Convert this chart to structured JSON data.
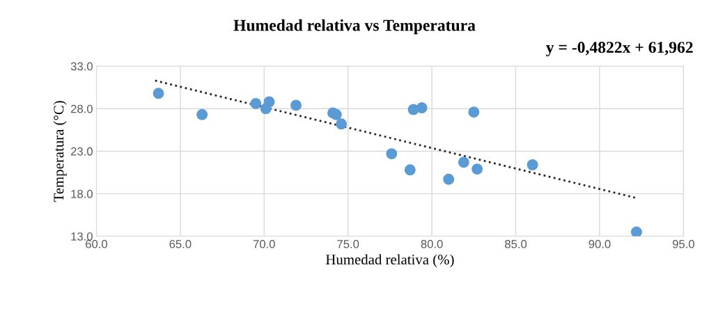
{
  "chart_data": {
    "type": "scatter",
    "title": "Humedad relativa vs Temperatura",
    "xlabel": "Humedad relativa (%)",
    "ylabel": "Temperatura (°C)",
    "annotations": [
      "y = -0,4822x + 61,962"
    ],
    "series": [
      {
        "type": "scatter",
        "color": "#5b9bd5",
        "marker": "circle",
        "x": [
          63.7,
          66.3,
          69.5,
          70.1,
          70.3,
          71.9,
          74.1,
          74.3,
          74.6,
          77.6,
          78.7,
          78.9,
          79.4,
          81.0,
          81.9,
          82.5,
          82.7,
          86.0,
          92.2
        ],
        "values": [
          29.8,
          27.3,
          28.6,
          28.0,
          28.8,
          28.4,
          27.5,
          27.3,
          26.2,
          22.7,
          20.8,
          27.9,
          28.1,
          19.7,
          21.7,
          27.6,
          20.9,
          21.4,
          13.5
        ]
      },
      {
        "type": "line",
        "color": "#262626",
        "line_style": "dotted",
        "marker": "none",
        "x": [
          63.5,
          92.2
        ],
        "values": [
          31.3,
          17.5
        ]
      }
    ],
    "xlim": [
      60,
      95
    ],
    "ylim": [
      13,
      33
    ],
    "xticks": [
      {
        "value": 60,
        "label": "60.0"
      },
      {
        "value": 65,
        "label": "65.0"
      },
      {
        "value": 70,
        "label": "70.0"
      },
      {
        "value": 75,
        "label": "75.0"
      },
      {
        "value": 80,
        "label": "80.0"
      },
      {
        "value": 85,
        "label": "85.0"
      },
      {
        "value": 90,
        "label": "90.0"
      },
      {
        "value": 95,
        "label": "95.0"
      }
    ],
    "yticks": [
      {
        "value": 13,
        "label": "13.0"
      },
      {
        "value": 18,
        "label": "18.0"
      },
      {
        "value": 23,
        "label": "23.0"
      },
      {
        "value": 28,
        "label": "28.0"
      },
      {
        "value": 33,
        "label": "33.0"
      }
    ],
    "grid": true
  }
}
